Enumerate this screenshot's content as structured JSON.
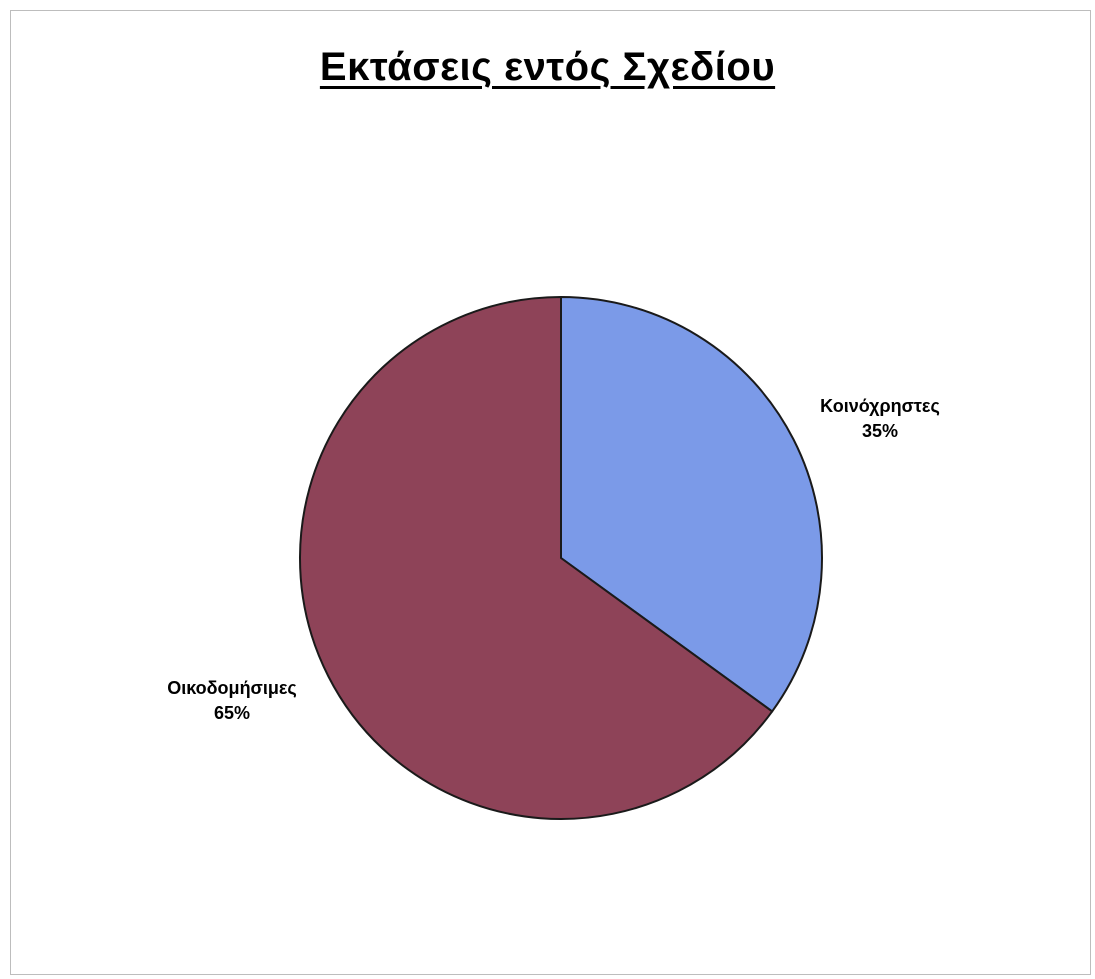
{
  "chart_data": {
    "type": "pie",
    "title": "Εκτάσεις εντός Σχεδίου",
    "slices": [
      {
        "label": "Κοινόχρηστες",
        "value": 35,
        "value_label": "35%",
        "color": "#7b9ae8"
      },
      {
        "label": "Οικοδομήσιμες",
        "value": 65,
        "value_label": "65%",
        "color": "#8e4358"
      }
    ],
    "start_angle_deg": 0,
    "direction": "clockwise",
    "legend": "none"
  }
}
